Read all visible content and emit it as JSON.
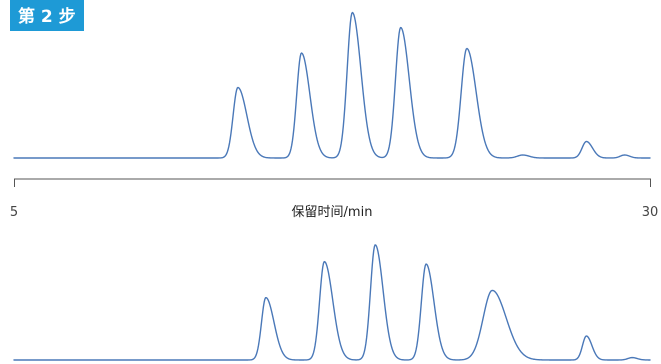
{
  "step_label": "第 2 步",
  "colors": {
    "trace": "#4a78b8",
    "badge": "#1e9ad6"
  },
  "chart_data": [
    {
      "type": "line",
      "xlabel": "保留时间/min",
      "xlim": [
        5,
        30
      ],
      "x_tick_labels": [
        "5",
        "30"
      ],
      "grid": false,
      "baseline": 0.03,
      "peaks": [
        {
          "rt": 13.8,
          "height": 0.47,
          "width": 0.22,
          "tail": 1.6
        },
        {
          "rt": 16.3,
          "height": 0.7,
          "width": 0.22,
          "tail": 1.5
        },
        {
          "rt": 18.3,
          "height": 0.97,
          "width": 0.24,
          "tail": 1.4
        },
        {
          "rt": 20.2,
          "height": 0.87,
          "width": 0.24,
          "tail": 1.4
        },
        {
          "rt": 22.8,
          "height": 0.73,
          "width": 0.26,
          "tail": 1.4
        },
        {
          "rt": 25.0,
          "height": 0.02,
          "width": 0.25,
          "tail": 1.0
        },
        {
          "rt": 27.5,
          "height": 0.11,
          "width": 0.2,
          "tail": 1.2
        },
        {
          "rt": 29.0,
          "height": 0.02,
          "width": 0.2,
          "tail": 1.0
        }
      ]
    },
    {
      "type": "line",
      "xlabel": "",
      "xlim": [
        5,
        30
      ],
      "grid": false,
      "baseline": 0.03,
      "peaks": [
        {
          "rt": 14.9,
          "height": 0.52,
          "width": 0.2,
          "tail": 1.6
        },
        {
          "rt": 17.2,
          "height": 0.82,
          "width": 0.22,
          "tail": 1.5
        },
        {
          "rt": 19.2,
          "height": 0.96,
          "width": 0.22,
          "tail": 1.4
        },
        {
          "rt": 21.2,
          "height": 0.8,
          "width": 0.22,
          "tail": 1.4
        },
        {
          "rt": 23.8,
          "height": 0.58,
          "width": 0.42,
          "tail": 1.3
        },
        {
          "rt": 27.5,
          "height": 0.2,
          "width": 0.18,
          "tail": 1.2
        },
        {
          "rt": 29.3,
          "height": 0.02,
          "width": 0.2,
          "tail": 1.0
        }
      ]
    }
  ]
}
